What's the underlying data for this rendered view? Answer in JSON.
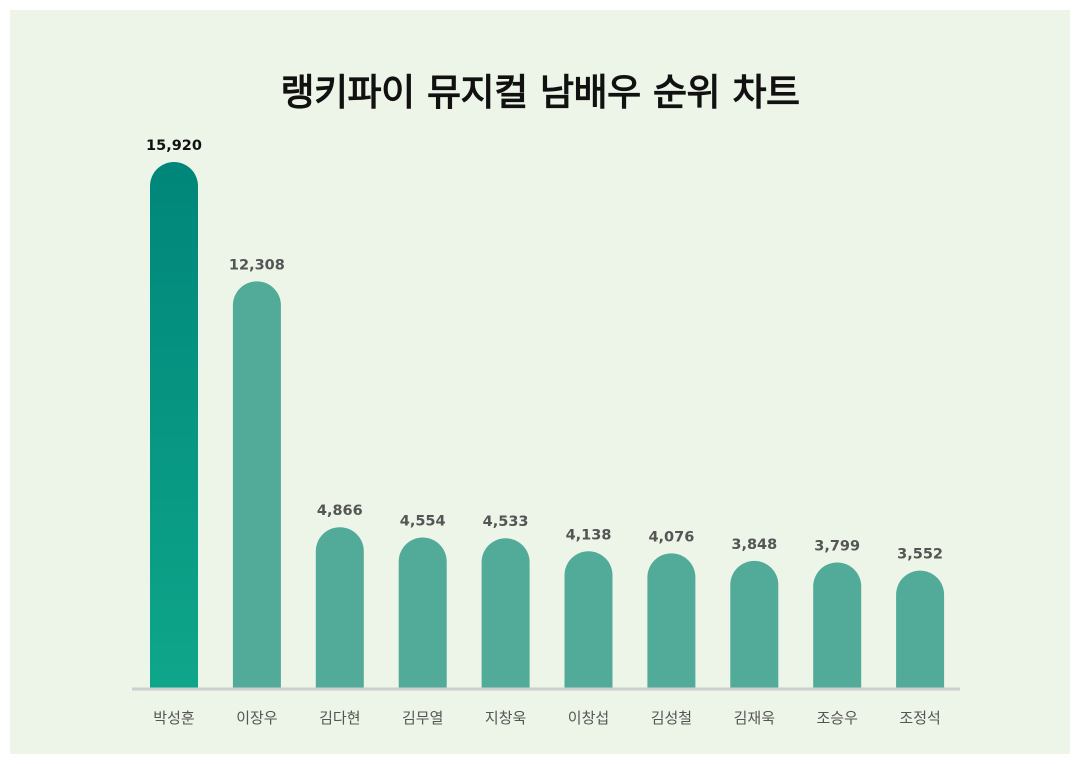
{
  "title": "랭키파이 뮤지컬 남배우 순위 차트",
  "colors": {
    "background": "#edf5e8",
    "bar": "#52aa99",
    "top_bar_gradient": [
      "#00867a",
      "#0ea68a"
    ],
    "top_value_label": "#111111",
    "value_label": "#555555",
    "category_label": "#555555",
    "baseline": "#cfcfcf"
  },
  "chart_data": {
    "type": "bar",
    "title": "랭키파이 뮤지컬 남배우 순위 차트",
    "categories": [
      "박성훈",
      "이장우",
      "김다현",
      "김무열",
      "지창욱",
      "이창섭",
      "김성철",
      "김재욱",
      "조승우",
      "조정석"
    ],
    "values": [
      15920,
      12308,
      4866,
      4554,
      4533,
      4138,
      4076,
      3848,
      3799,
      3552
    ],
    "value_labels": [
      "15,920",
      "12,308",
      "4,866",
      "4,554",
      "4,533",
      "4,138",
      "4,076",
      "3,848",
      "3,799",
      "3,552"
    ],
    "xlabel": "",
    "ylabel": "",
    "grid": false,
    "legend": "none"
  }
}
